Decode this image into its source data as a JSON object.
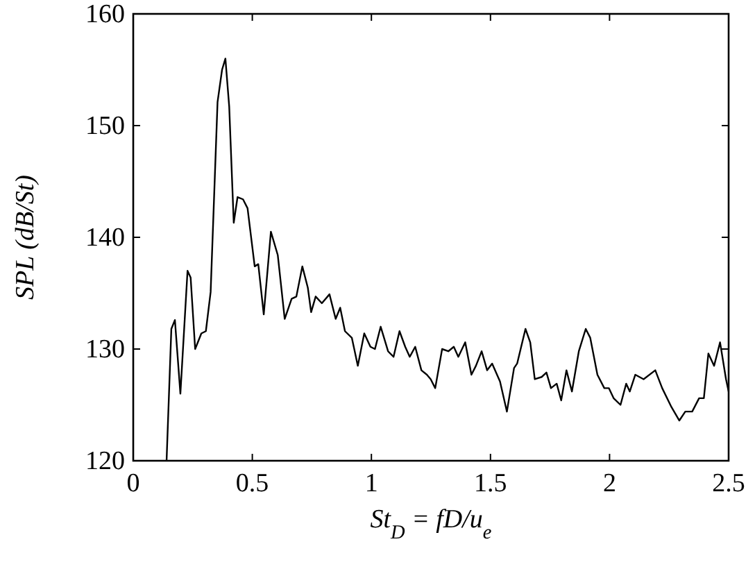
{
  "chart_data": {
    "type": "line",
    "xlabel": "St$_{D}$ = fD/u$_{e}$",
    "ylabel": "SPL (dB/St)",
    "xlim": [
      0,
      2.5
    ],
    "xticks": [
      0,
      0.5,
      1,
      1.5,
      2,
      2.5
    ],
    "ylim": [
      120,
      160
    ],
    "yticks": [
      120,
      130,
      140,
      150,
      160
    ],
    "grid": false,
    "marker": "none",
    "line_style": "solid",
    "series": [
      {
        "color": "#000000",
        "x": [
          0.14,
          0.16,
          0.175,
          0.198,
          0.228,
          0.241,
          0.26,
          0.286,
          0.305,
          0.325,
          0.354,
          0.373,
          0.387,
          0.403,
          0.422,
          0.438,
          0.461,
          0.48,
          0.51,
          0.525,
          0.548,
          0.578,
          0.607,
          0.636,
          0.665,
          0.685,
          0.71,
          0.733,
          0.747,
          0.766,
          0.792,
          0.824,
          0.85,
          0.869,
          0.889,
          0.918,
          0.943,
          0.97,
          0.996,
          1.015,
          1.039,
          1.07,
          1.093,
          1.118,
          1.142,
          1.161,
          1.184,
          1.21,
          1.233,
          1.249,
          1.268,
          1.297,
          1.323,
          1.346,
          1.365,
          1.394,
          1.42,
          1.439,
          1.463,
          1.486,
          1.507,
          1.54,
          1.569,
          1.599,
          1.612,
          1.647,
          1.667,
          1.686,
          1.715,
          1.735,
          1.754,
          1.778,
          1.797,
          1.819,
          1.842,
          1.871,
          1.9,
          1.919,
          1.949,
          1.978,
          1.997,
          2.017,
          2.046,
          2.07,
          2.085,
          2.108,
          2.143,
          2.192,
          2.221,
          2.26,
          2.293,
          2.318,
          2.347,
          2.376,
          2.396,
          2.415,
          2.439,
          2.464,
          2.489,
          2.5
        ],
        "values": [
          120.0,
          131.8,
          132.6,
          126.0,
          137.0,
          136.4,
          130.0,
          131.4,
          131.6,
          135.1,
          152.1,
          155.0,
          156.0,
          151.7,
          141.3,
          143.6,
          143.4,
          142.6,
          137.4,
          137.6,
          133.1,
          140.5,
          138.4,
          132.7,
          134.5,
          134.7,
          137.4,
          135.5,
          133.3,
          134.7,
          134.1,
          134.9,
          132.7,
          133.7,
          131.6,
          131.0,
          128.5,
          131.4,
          130.2,
          130.0,
          132.0,
          129.8,
          129.3,
          131.6,
          130.2,
          129.3,
          130.2,
          128.1,
          127.7,
          127.3,
          126.5,
          130.0,
          129.8,
          130.2,
          129.3,
          130.6,
          127.7,
          128.5,
          129.8,
          128.1,
          128.7,
          127.1,
          124.4,
          128.3,
          128.7,
          131.8,
          130.6,
          127.3,
          127.5,
          127.9,
          126.5,
          126.9,
          125.4,
          128.1,
          126.2,
          129.8,
          131.8,
          131.0,
          127.7,
          126.5,
          126.5,
          125.6,
          125.0,
          126.9,
          126.2,
          127.7,
          127.3,
          128.1,
          126.5,
          124.8,
          123.6,
          124.4,
          124.4,
          125.6,
          125.6,
          129.6,
          128.5,
          130.6,
          127.3,
          126.2
        ]
      }
    ]
  }
}
